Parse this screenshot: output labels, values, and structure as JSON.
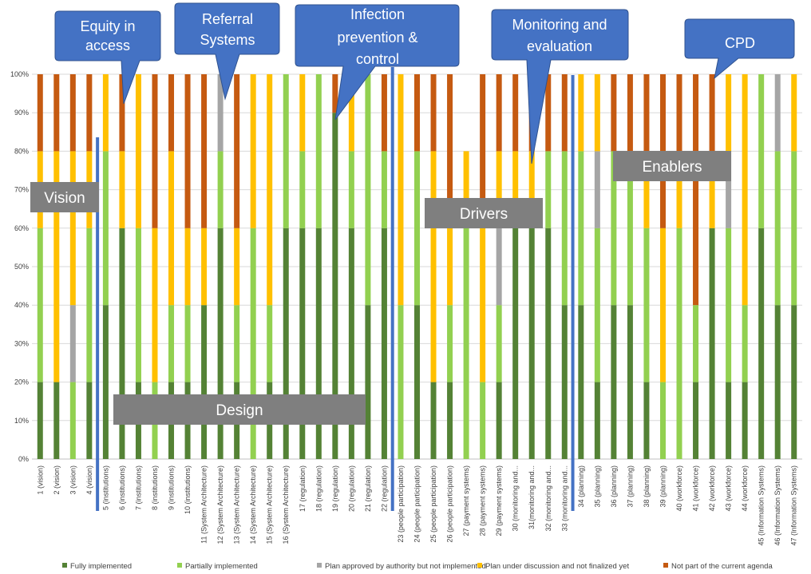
{
  "chart_data": {
    "type": "bar",
    "stacked": true,
    "ylim": [
      0,
      100
    ],
    "yticks": [
      "0%",
      "10%",
      "20%",
      "30%",
      "40%",
      "50%",
      "60%",
      "70%",
      "80%",
      "90%",
      "100%"
    ],
    "grid": true,
    "legend_position": "bottom",
    "categories": [
      "1 (vision)",
      "2 (vision)",
      "3 (vision)",
      "4 (vision)",
      "5 (institutions)",
      "6 (institutions)",
      "7 (institutions)",
      "8 (institutions)",
      "9 (institutions)",
      "10 (institutions)",
      "11 (System Architecture)",
      "12 (System Architecture)",
      "13 (System Architecture)",
      "14 (System Architecture)",
      "15 (System Architecture)",
      "16 (System Architecture)",
      "17 (regulation)",
      "18 (regulation)",
      "19 (regulation)",
      "20 (regulation)",
      "21 (regulation)",
      "22 (regulation)",
      "23 (people participation)",
      "24 (people participation)",
      "25 (people participation)",
      "26 (people participation)",
      "27 (payment systems)",
      "28 (payment systems)",
      "29 (payment systems)",
      "30 (monitoring and...",
      "31(monitoring and...",
      "32 (monitoring and...",
      "33 (monitoring and...",
      "34 (planning)",
      "35 (planning)",
      "36 (planning)",
      "37 (planning)",
      "38 (planning)",
      "39 (planning)",
      "40 (workforce)",
      "41 (workforce)",
      "42 (workforce)",
      "43 (workforce)",
      "44 (workforce)",
      "45 (Information Systems)",
      "46 (Information Systems)",
      "47 (Information Systems)"
    ],
    "series": [
      {
        "name": "Fully implemented",
        "color": "#548235",
        "values": [
          20,
          20,
          0,
          20,
          40,
          60,
          20,
          0,
          20,
          20,
          40,
          60,
          20,
          0,
          20,
          60,
          60,
          60,
          90,
          60,
          40,
          60,
          0,
          40,
          20,
          20,
          0,
          0,
          20,
          60,
          60,
          60,
          40,
          40,
          20,
          40,
          40,
          20,
          0,
          0,
          20,
          60,
          20,
          20,
          60,
          40,
          40
        ]
      },
      {
        "name": "Partially implemented",
        "color": "#92D050",
        "values": [
          40,
          0,
          20,
          40,
          40,
          0,
          40,
          20,
          20,
          20,
          0,
          20,
          20,
          60,
          20,
          40,
          20,
          40,
          0,
          20,
          60,
          20,
          40,
          40,
          0,
          20,
          60,
          20,
          20,
          0,
          0,
          20,
          40,
          40,
          40,
          40,
          40,
          40,
          20,
          60,
          20,
          0,
          40,
          20,
          40,
          40,
          40
        ]
      },
      {
        "name": "Plan approved by authority but not implemented",
        "color": "#A5A5A5",
        "values": [
          0,
          0,
          20,
          0,
          0,
          0,
          0,
          0,
          0,
          0,
          0,
          20,
          0,
          0,
          0,
          0,
          0,
          0,
          0,
          0,
          0,
          0,
          0,
          0,
          0,
          0,
          0,
          0,
          20,
          0,
          0,
          0,
          0,
          0,
          20,
          0,
          0,
          0,
          0,
          0,
          0,
          0,
          20,
          0,
          0,
          20,
          0
        ]
      },
      {
        "name": "Plan under discussion and not finalized yet",
        "color": "#FFC000",
        "values": [
          20,
          60,
          40,
          20,
          20,
          20,
          40,
          40,
          40,
          20,
          20,
          0,
          20,
          40,
          60,
          0,
          20,
          0,
          0,
          20,
          0,
          0,
          60,
          0,
          60,
          20,
          20,
          40,
          20,
          20,
          20,
          0,
          0,
          20,
          20,
          0,
          0,
          20,
          40,
          20,
          0,
          20,
          20,
          60,
          0,
          0,
          20
        ]
      },
      {
        "name": "Not part of the current agenda",
        "color": "#C55A11",
        "values": [
          20,
          20,
          20,
          20,
          0,
          20,
          0,
          40,
          20,
          40,
          40,
          0,
          40,
          0,
          0,
          0,
          0,
          0,
          10,
          0,
          0,
          20,
          0,
          20,
          20,
          40,
          0,
          40,
          20,
          20,
          20,
          20,
          20,
          0,
          0,
          20,
          20,
          20,
          40,
          20,
          60,
          20,
          0,
          0,
          0,
          0,
          0
        ]
      }
    ],
    "annotations": {
      "callouts": [
        {
          "lines": [
            "Equity in",
            "access"
          ]
        },
        {
          "lines": [
            "Referral",
            "Systems"
          ]
        },
        {
          "lines": [
            "Infection",
            "prevention &",
            "control"
          ]
        },
        {
          "lines": [
            "Monitoring and",
            "evaluation"
          ]
        },
        {
          "lines": [
            "CPD"
          ]
        }
      ],
      "section_boxes": [
        "Vision",
        "Design",
        "Drivers",
        "Enablers"
      ]
    },
    "colors": {
      "callout": "#4472C4",
      "callout_border": "#2F528F",
      "section_box": "#7F7F7F",
      "divider": "#4472C4",
      "grid": "#D9D9D9"
    }
  }
}
